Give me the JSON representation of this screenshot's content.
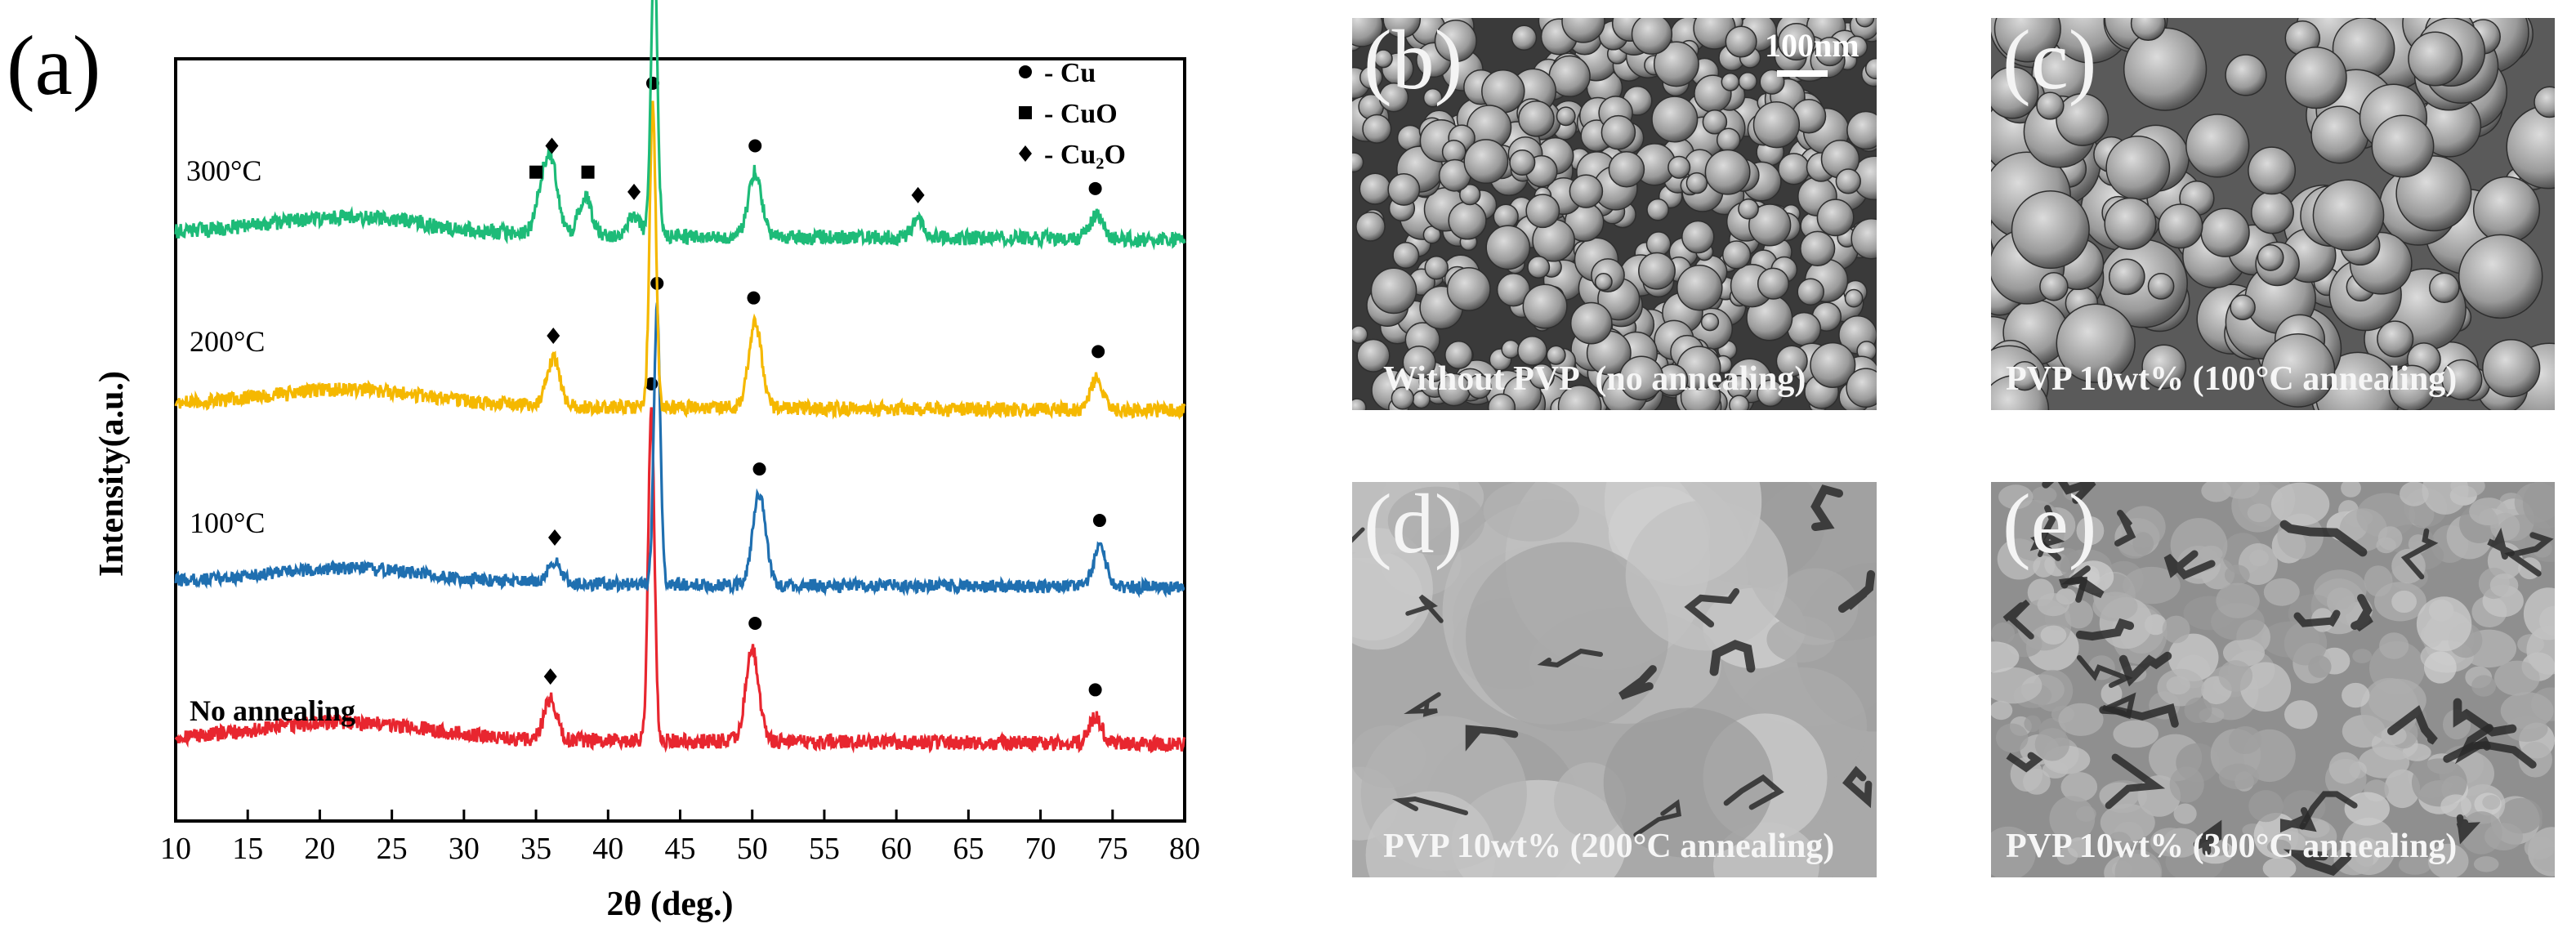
{
  "figure": {
    "panel_a_label": "(a)"
  },
  "chart_data": {
    "type": "line",
    "xlabel": "2θ (deg.)",
    "ylabel": "Intensity(a.u.)",
    "xlim": [
      10,
      80
    ],
    "xticks": [
      10,
      15,
      20,
      25,
      30,
      35,
      40,
      45,
      50,
      55,
      60,
      65,
      70,
      75,
      80
    ],
    "legend": {
      "placement": "top-right",
      "entries": [
        {
          "marker": "circle",
          "label": "- Cu"
        },
        {
          "marker": "square",
          "label": "- CuO"
        },
        {
          "marker": "diamond",
          "label": "- Cu₂O"
        }
      ]
    },
    "series": [
      {
        "name": "No annealing",
        "color": "#e8262f",
        "label": "No annealing",
        "peaks": [
          {
            "x": 36.0,
            "h": 0.12
          },
          {
            "x": 43.0,
            "h": 1.0
          },
          {
            "x": 50.0,
            "h": 0.28
          },
          {
            "x": 73.8,
            "h": 0.08
          }
        ],
        "markers": [
          {
            "x": 36.0,
            "type": "diamond"
          },
          {
            "x": 43.0,
            "type": "circle"
          },
          {
            "x": 50.2,
            "type": "circle"
          },
          {
            "x": 73.8,
            "type": "circle"
          }
        ]
      },
      {
        "name": "100°C",
        "color": "#1f6fb0",
        "label": "100°C",
        "peaks": [
          {
            "x": 36.3,
            "h": 0.08
          },
          {
            "x": 43.4,
            "h": 0.97
          },
          {
            "x": 50.5,
            "h": 0.32
          },
          {
            "x": 74.1,
            "h": 0.14
          }
        ],
        "markers": [
          {
            "x": 36.3,
            "type": "diamond"
          },
          {
            "x": 43.4,
            "type": "circle"
          },
          {
            "x": 50.5,
            "type": "circle"
          },
          {
            "x": 74.1,
            "type": "circle"
          }
        ]
      },
      {
        "name": "200°C",
        "color": "#f5b800",
        "label": "200°C",
        "peaks": [
          {
            "x": 36.2,
            "h": 0.15
          },
          {
            "x": 43.1,
            "h": 0.95
          },
          {
            "x": 50.2,
            "h": 0.27
          },
          {
            "x": 73.9,
            "h": 0.1
          }
        ],
        "markers": [
          {
            "x": 36.2,
            "type": "diamond"
          },
          {
            "x": 43.1,
            "type": "circle"
          },
          {
            "x": 50.1,
            "type": "circle"
          },
          {
            "x": 74.0,
            "type": "circle"
          }
        ]
      },
      {
        "name": "300°C",
        "color": "#1dbb78",
        "label": "300°C",
        "peaks": [
          {
            "x": 35.4,
            "h": 0.12
          },
          {
            "x": 36.1,
            "h": 0.2
          },
          {
            "x": 38.4,
            "h": 0.12
          },
          {
            "x": 41.8,
            "h": 0.06
          },
          {
            "x": 43.2,
            "h": 0.88
          },
          {
            "x": 50.2,
            "h": 0.2
          },
          {
            "x": 61.5,
            "h": 0.05
          },
          {
            "x": 73.9,
            "h": 0.07
          }
        ],
        "markers": [
          {
            "x": 35.0,
            "type": "square"
          },
          {
            "x": 36.1,
            "type": "diamond"
          },
          {
            "x": 38.6,
            "type": "square"
          },
          {
            "x": 41.8,
            "type": "diamond"
          },
          {
            "x": 43.2,
            "type": "circle"
          },
          {
            "x": 50.2,
            "type": "circle"
          },
          {
            "x": 61.5,
            "type": "diamond"
          },
          {
            "x": 73.8,
            "type": "circle"
          }
        ]
      }
    ]
  },
  "sem_panels": [
    {
      "letter": "(b)",
      "caption": "Without PVP  (no annealing)",
      "scale_label": "100nm",
      "seed": 11,
      "style": "particles"
    },
    {
      "letter": "(c)",
      "caption": "PVP 10wt% (100°C annealing)",
      "seed": 23,
      "style": "spheres"
    },
    {
      "letter": "(d)",
      "caption": "PVP 10wt% (200°C annealing)",
      "seed": 37,
      "style": "smooth"
    },
    {
      "letter": "(e)",
      "caption": "PVP 10wt% (300°C annealing)",
      "seed": 53,
      "style": "rough"
    }
  ]
}
